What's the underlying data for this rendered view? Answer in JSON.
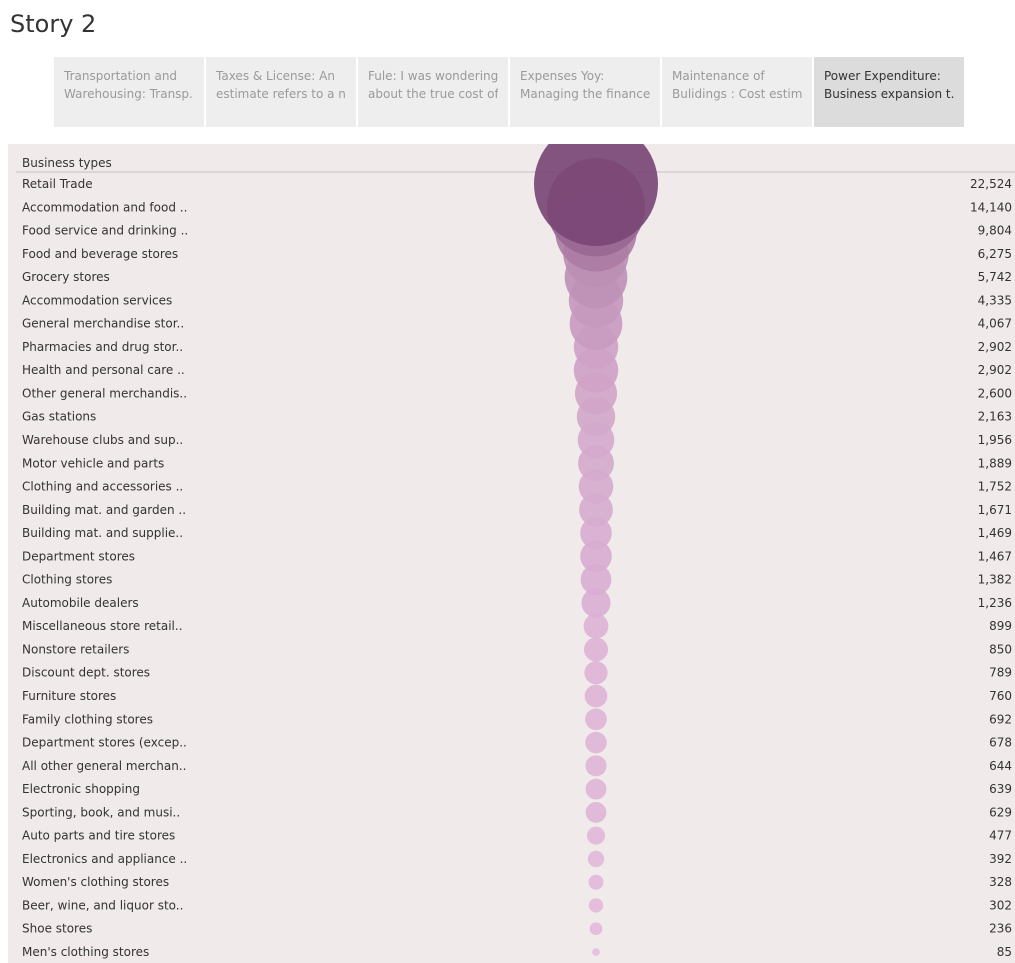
{
  "story": {
    "title": "Story 2"
  },
  "tabs": [
    {
      "line1": "Transportation and",
      "line2": "Warehousing: Transp..",
      "active": false
    },
    {
      "line1": "Taxes & License: An",
      "line2": "estimate refers to a n..",
      "active": false
    },
    {
      "line1": "Fule: I was wondering",
      "line2": "about the true cost of..",
      "active": false
    },
    {
      "line1": "Expenses Yoy:",
      "line2": "Managing the finance..",
      "active": false
    },
    {
      "line1": "Maintenance of",
      "line2": "Bulidings : Cost estim..",
      "active": false
    },
    {
      "line1": "Power Expenditure:",
      "line2": "Business expansion t..",
      "active": true
    }
  ],
  "chart_data": {
    "type": "bubble",
    "row_header": "Business types",
    "size_encodes": "value",
    "color_range": [
      "#e9bfe0",
      "#7a4775"
    ],
    "categories": [
      "Retail Trade",
      "Accommodation and food ..",
      "Food service and drinking ..",
      "Food and beverage stores",
      "Grocery stores",
      "Accommodation services",
      "General merchandise stor..",
      "Pharmacies and drug stor..",
      "Health and personal care ..",
      "Other general merchandis..",
      "Gas stations",
      "Warehouse clubs and sup..",
      "Motor vehicle and parts",
      "Clothing and accessories ..",
      "Building mat. and garden ..",
      "Building mat. and supplie..",
      "Department stores",
      "Clothing stores",
      "Automobile dealers",
      "Miscellaneous store retail..",
      "Nonstore retailers",
      "Discount dept. stores",
      "Furniture stores",
      "Family clothing stores",
      "Department stores (excep..",
      "All other general merchan..",
      "Electronic shopping",
      "Sporting, book, and  musi..",
      "Auto parts and tire stores",
      "Electronics and appliance ..",
      "Women's clothing stores",
      "Beer, wine, and liquor sto..",
      "Shoe stores",
      "Men's clothing stores"
    ],
    "values": [
      22524,
      14140,
      9804,
      6275,
      5742,
      4335,
      4067,
      2902,
      2902,
      2600,
      2163,
      1956,
      1889,
      1752,
      1671,
      1469,
      1467,
      1382,
      1236,
      899,
      850,
      789,
      760,
      692,
      678,
      644,
      639,
      629,
      477,
      392,
      328,
      302,
      236,
      85
    ],
    "value_labels": [
      "22,524",
      "14,140",
      "9,804",
      "6,275",
      "5,742",
      "4,335",
      "4,067",
      "2,902",
      "2,902",
      "2,600",
      "2,163",
      "1,956",
      "1,889",
      "1,752",
      "1,671",
      "1,469",
      "1,467",
      "1,382",
      "1,236",
      "899",
      "850",
      "789",
      "760",
      "692",
      "678",
      "644",
      "639",
      "629",
      "477",
      "392",
      "328",
      "302",
      "236",
      "85"
    ]
  }
}
